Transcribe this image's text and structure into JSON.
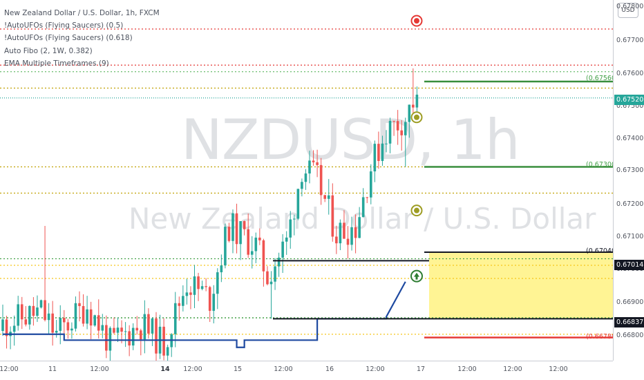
{
  "legend": {
    "symbol_line": "New Zealand Dollar / U.S. Dollar, 1h, FXCM",
    "indicators": [
      "!AutoUFOs (Flying Saucers) (0.5)",
      "!AutoUFOs (Flying Saucers) (0.618)",
      "Auto Fibo (2, 1W, 0.382)",
      "EMA Multiple Timeframes (9)"
    ]
  },
  "watermark": {
    "ticker": "NZDUSD, 1h",
    "name": "New Zealand Dollar / U.S. Dollar"
  },
  "price_scale": {
    "currency_button": "USD",
    "labels": [
      "0.67800",
      "0.67700",
      "0.67600",
      "0.67500",
      "0.67400",
      "0.67300",
      "0.67200",
      "0.67100",
      "0.67000",
      "0.66900",
      "0.66800"
    ],
    "badges": [
      {
        "text": "0.67520",
        "color": "#26a69a"
      },
      {
        "text": "0.67014",
        "color": "#131722"
      },
      {
        "text": "0.66837",
        "color": "#131722"
      }
    ]
  },
  "time_scale": {
    "labels": [
      "12:00",
      "11",
      "12:00",
      "14",
      "12:00",
      "15",
      "12:00",
      "16",
      "12:00",
      "17",
      "12:00",
      "12:00",
      "12:00"
    ],
    "bold": [
      false,
      false,
      false,
      true,
      false,
      false,
      false,
      false,
      false,
      false,
      false,
      false,
      false
    ]
  },
  "fib_labels": [
    {
      "text": "(0.67560)",
      "color": "#43a047"
    },
    {
      "text": "(0.67300)",
      "color": "#43a047"
    },
    {
      "text": "(0.67040)",
      "color": "#131722"
    },
    {
      "text": "(0.66780)",
      "color": "#e53935"
    }
  ],
  "colors": {
    "up": "#26a69a",
    "down": "#ef5350",
    "ema": "#1e49a0",
    "zone": "#fff176",
    "target_green": "#388e3c",
    "target_red": "#e53935"
  },
  "markers": [
    {
      "icon": "red-target-icon",
      "color": "#e53935"
    },
    {
      "icon": "olive-target-icon",
      "color": "#9e9d24"
    },
    {
      "icon": "olive-target-icon",
      "color": "#9e9d24"
    },
    {
      "icon": "green-up-arrow-icon",
      "color": "#2e7d32"
    }
  ],
  "chart_data": {
    "type": "candlestick",
    "symbol": "NZDUSD",
    "timeframe": "1h",
    "ylim": [
      0.6674,
      0.6783
    ],
    "last_price": 0.6752,
    "horizontal_levels": [
      0.6772,
      0.6761,
      0.6759,
      0.6754,
      0.6751,
      0.673,
      0.6722,
      0.6702,
      0.67,
      0.6696,
      0.6684,
      0.6679
    ],
    "fib_levels": [
      0.6756,
      0.673,
      0.6704,
      0.6678
    ],
    "zone": [
      0.66837,
      0.6704
    ],
    "ema_steps": [
      {
        "bar": 0,
        "value": 0.6679
      },
      {
        "bar": 16,
        "value": 0.66772
      },
      {
        "bar": 61,
        "value": 0.6675
      },
      {
        "bar": 63,
        "value": 0.66772
      },
      {
        "bar": 82,
        "value": 0.66837
      },
      {
        "bar": 100,
        "value": 0.66843
      },
      {
        "bar": 105,
        "value": 0.6695
      }
    ]
  }
}
